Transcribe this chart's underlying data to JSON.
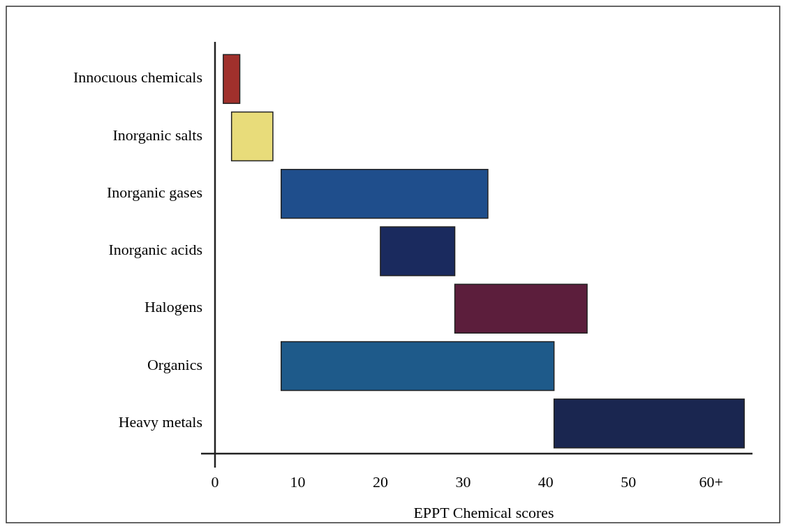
{
  "chart_data": {
    "type": "bar",
    "orientation": "horizontal",
    "xlabel": "EPPT Chemical scores",
    "categories": [
      "Innocuous chemicals",
      "Inorganic salts",
      "Inorganic gases",
      "Inorganic acids",
      "Halogens",
      "Organics",
      "Heavy metals"
    ],
    "base": [
      1,
      2,
      8,
      20,
      29,
      8,
      41
    ],
    "values": [
      2,
      5,
      25,
      9,
      16,
      33,
      23
    ],
    "colors": [
      "#a0302c",
      "#e8dc7a",
      "#1f4e8c",
      "#1a2a5e",
      "#5c1e3c",
      "#1e5a8a",
      "#1a2650"
    ],
    "xlim": [
      0,
      65
    ],
    "xticks": [
      0,
      10,
      20,
      30,
      40,
      50,
      {
        "value": 60,
        "label": "60+"
      }
    ],
    "grid": false
  }
}
